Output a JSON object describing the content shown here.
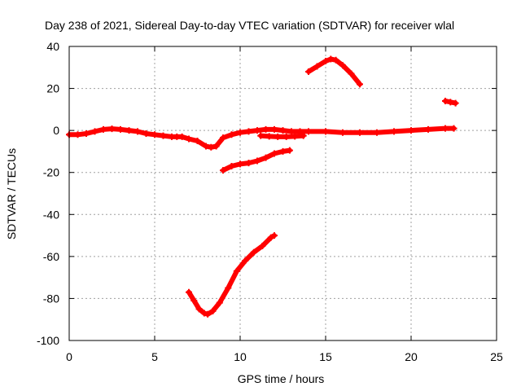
{
  "chart_data": {
    "type": "line",
    "title": "Day 238 of 2021, Sidereal Day-to-day VTEC variation (SDTVAR) for receiver wlal",
    "xlabel": "GPS time / hours",
    "ylabel": "SDTVAR / TECUs",
    "xlim": [
      0,
      25
    ],
    "ylim": [
      -100,
      40
    ],
    "xticks": [
      0,
      5,
      10,
      15,
      20,
      25
    ],
    "yticks": [
      -100,
      -80,
      -60,
      -40,
      -20,
      0,
      20,
      40
    ],
    "grid": true,
    "series_color": "#ff0000",
    "series": [
      {
        "x": [
          0,
          0.5,
          1,
          1.5,
          2,
          2.5,
          3,
          3.5,
          4,
          4.5,
          5,
          5.5,
          6,
          6.3,
          6.6,
          7,
          7.5,
          8,
          8.3,
          8.6,
          9,
          9.5,
          10,
          10.5,
          11,
          11.5,
          12,
          12.5,
          13,
          13.5,
          14,
          15,
          16,
          17,
          18,
          19,
          20,
          21,
          22,
          22.5
        ],
        "y": [
          -2,
          -2,
          -1.5,
          -0.5,
          0.5,
          0.8,
          0.5,
          0,
          -0.5,
          -1.5,
          -2,
          -2.5,
          -3,
          -3,
          -3,
          -4,
          -5,
          -7.5,
          -8,
          -7.5,
          -3.5,
          -2,
          -1,
          -0.5,
          0,
          0.5,
          0.5,
          0,
          -0.5,
          -0.5,
          -0.5,
          -0.5,
          -1,
          -1,
          -1,
          -0.5,
          0,
          0.5,
          1,
          1
        ]
      },
      {
        "x": [
          9,
          9.5,
          10,
          10.5,
          11,
          11.5,
          12,
          12.5,
          12.9
        ],
        "y": [
          -19,
          -17,
          -16,
          -15.5,
          -14.5,
          -13,
          -11,
          -10,
          -9.5
        ]
      },
      {
        "x": [
          11.2,
          11.7,
          12.2,
          12.7,
          13.2,
          13.7
        ],
        "y": [
          -2.5,
          -2.8,
          -3,
          -3,
          -2.8,
          -2.5
        ]
      },
      {
        "x": [
          7,
          7.3,
          7.6,
          7.9,
          8.1,
          8.4,
          8.8,
          9.3,
          9.8,
          10.3,
          10.8,
          11.3,
          11.8,
          12
        ],
        "y": [
          -77,
          -81,
          -85,
          -87,
          -87.5,
          -86,
          -82,
          -75,
          -67,
          -62,
          -58,
          -55,
          -51,
          -50
        ]
      },
      {
        "x": [
          14,
          14.5,
          15,
          15.3,
          15.6,
          16,
          16.5,
          17
        ],
        "y": [
          28,
          30.5,
          33,
          34,
          33.5,
          31,
          27,
          22
        ]
      },
      {
        "x": [
          22,
          22.3,
          22.6
        ],
        "y": [
          14,
          13.5,
          13
        ]
      }
    ]
  }
}
